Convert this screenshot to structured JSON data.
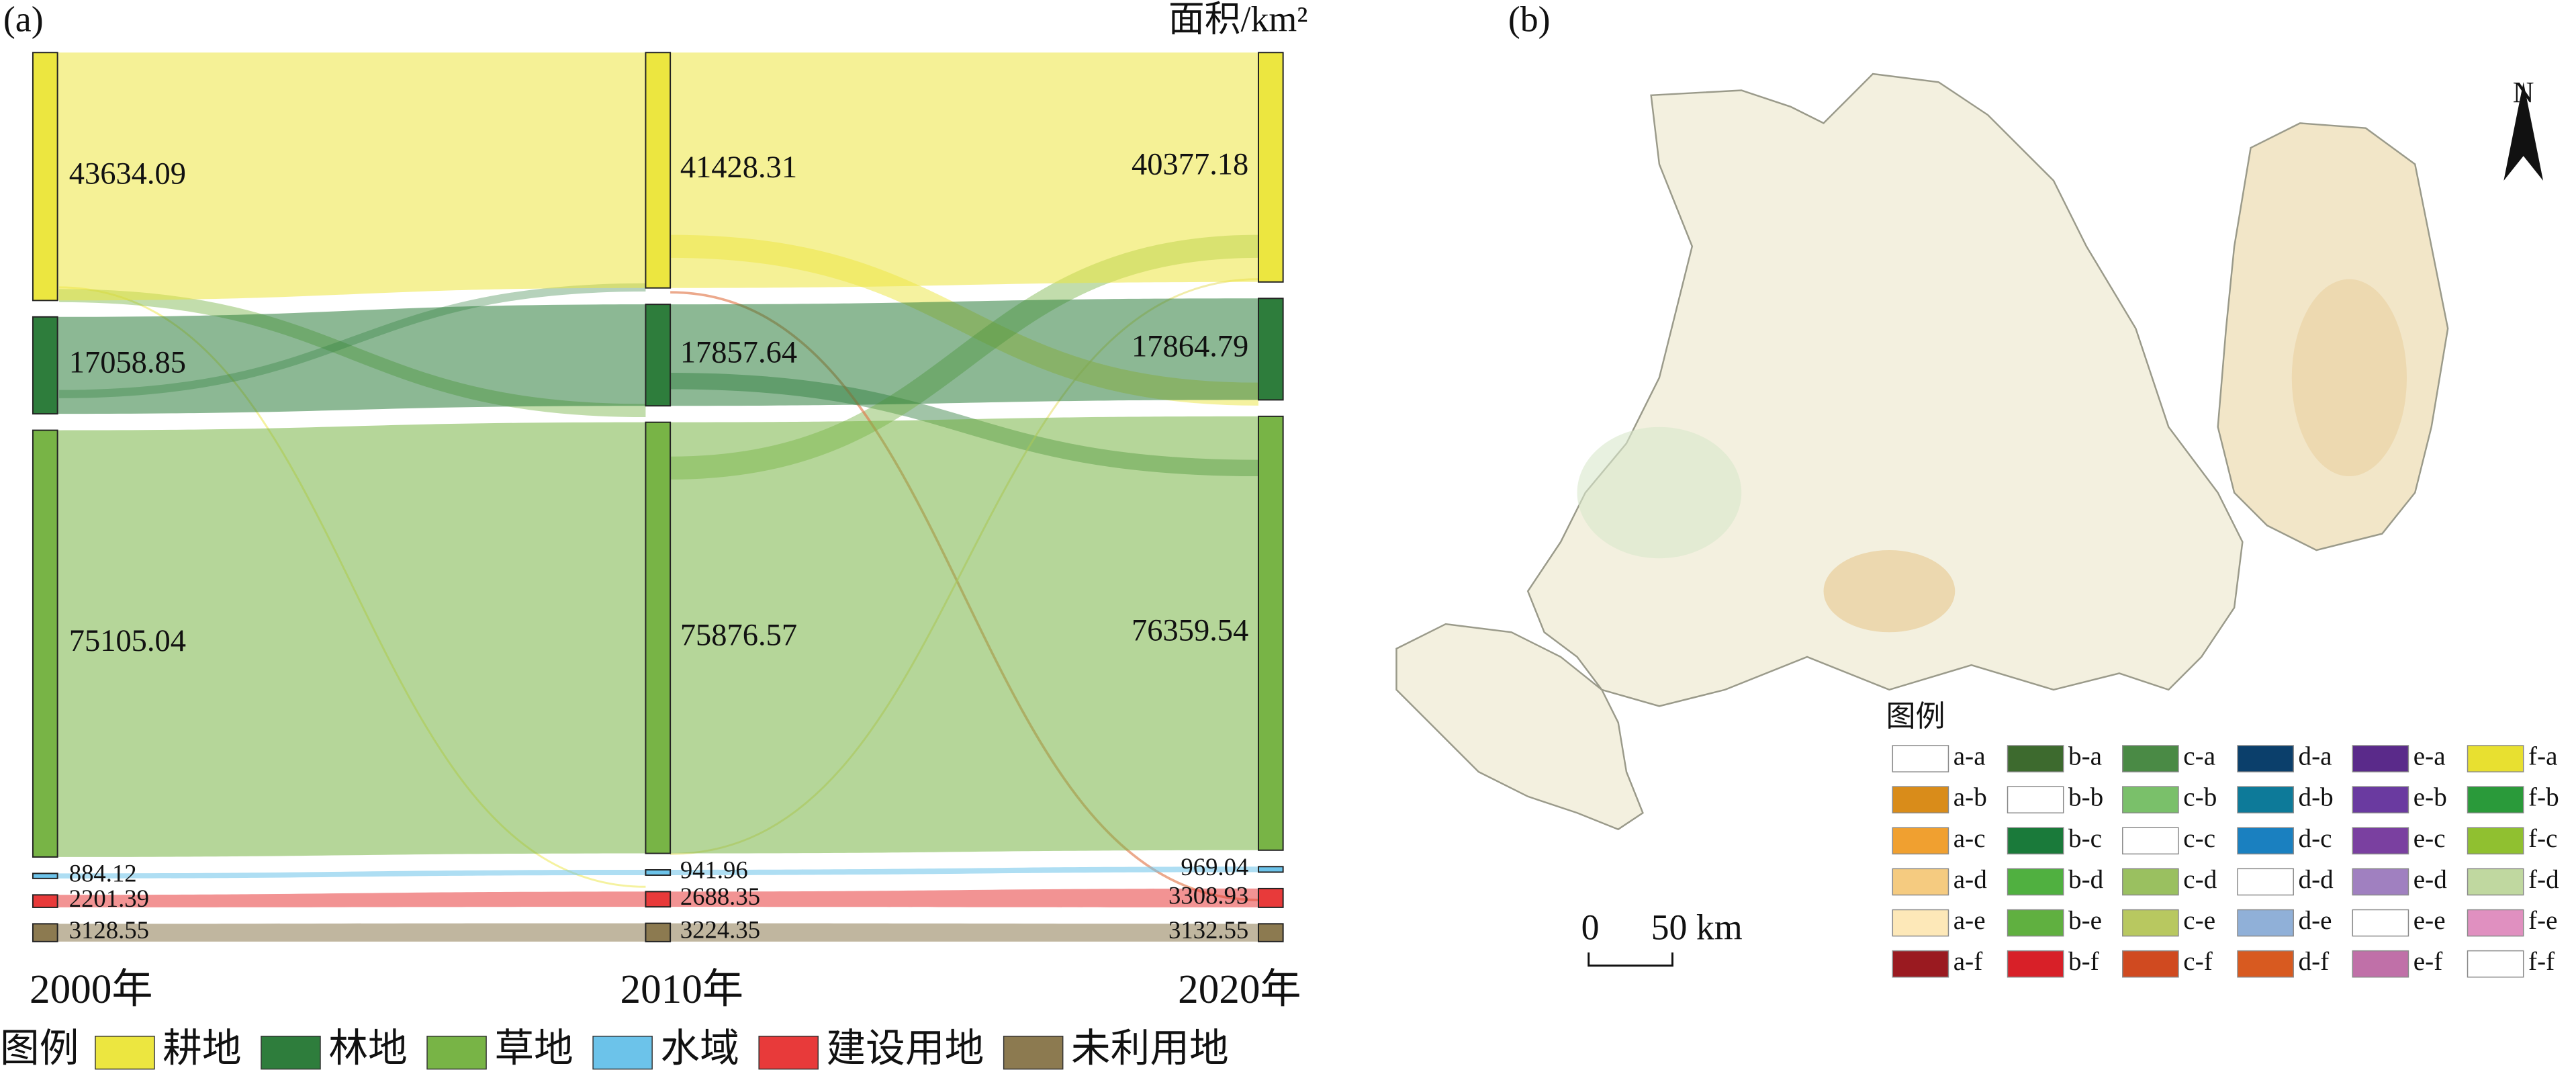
{
  "chart_data": {
    "type": "sankey",
    "panel_label": "(a)",
    "unit_label": "面积/km²",
    "columns": [
      "2000年",
      "2010年",
      "2020年"
    ],
    "legend_title": "图例",
    "series": [
      {
        "name": "耕地",
        "color": "#ece640",
        "values": [
          43634.09,
          41428.31,
          40377.18
        ]
      },
      {
        "name": "林地",
        "color": "#2e7d3c",
        "values": [
          17058.85,
          17857.64,
          17864.79
        ]
      },
      {
        "name": "草地",
        "color": "#78b446",
        "values": [
          75105.04,
          75876.57,
          76359.54
        ]
      },
      {
        "name": "水域",
        "color": "#6cc3ea",
        "values": [
          884.12,
          941.96,
          969.04
        ]
      },
      {
        "name": "建设用地",
        "color": "#e83a3a",
        "values": [
          2201.39,
          2688.35,
          3308.93
        ]
      },
      {
        "name": "未利用地",
        "color": "#8c7a50",
        "values": [
          3128.55,
          3224.35,
          3132.55
        ]
      }
    ]
  },
  "map": {
    "panel_label": "(b)",
    "north": "N",
    "scale_labels": [
      "0",
      "50 km"
    ],
    "legend_title": "图例",
    "legend": [
      {
        "label": "a-a",
        "color": "#ffffff"
      },
      {
        "label": "b-a",
        "color": "#3d6a2e"
      },
      {
        "label": "c-a",
        "color": "#4a8a45"
      },
      {
        "label": "d-a",
        "color": "#0b3f6b"
      },
      {
        "label": "e-a",
        "color": "#5a2a8a"
      },
      {
        "label": "f-a",
        "color": "#e8e030"
      },
      {
        "label": "a-b",
        "color": "#d98c1a"
      },
      {
        "label": "b-b",
        "color": "#ffffff"
      },
      {
        "label": "c-b",
        "color": "#7ac06a"
      },
      {
        "label": "d-b",
        "color": "#0d7a99"
      },
      {
        "label": "e-b",
        "color": "#6a3aa0"
      },
      {
        "label": "f-b",
        "color": "#2a9a3a"
      },
      {
        "label": "a-c",
        "color": "#f0a030"
      },
      {
        "label": "b-c",
        "color": "#1a7a3a"
      },
      {
        "label": "c-c",
        "color": "#ffffff"
      },
      {
        "label": "d-c",
        "color": "#1a80c0"
      },
      {
        "label": "e-c",
        "color": "#7a40a0"
      },
      {
        "label": "f-c",
        "color": "#90c030"
      },
      {
        "label": "a-d",
        "color": "#f5cb80"
      },
      {
        "label": "b-d",
        "color": "#50b040"
      },
      {
        "label": "c-d",
        "color": "#9ac060"
      },
      {
        "label": "d-d",
        "color": "#ffffff"
      },
      {
        "label": "e-d",
        "color": "#a080c0"
      },
      {
        "label": "f-d",
        "color": "#c0d8a0"
      },
      {
        "label": "a-e",
        "color": "#fde8b8"
      },
      {
        "label": "b-e",
        "color": "#60b040"
      },
      {
        "label": "c-e",
        "color": "#b8c860"
      },
      {
        "label": "d-e",
        "color": "#90b0d8"
      },
      {
        "label": "e-e",
        "color": "#ffffff"
      },
      {
        "label": "f-e",
        "color": "#e090c0"
      },
      {
        "label": "a-f",
        "color": "#9a1a20"
      },
      {
        "label": "b-f",
        "color": "#d82028"
      },
      {
        "label": "c-f",
        "color": "#d04a20"
      },
      {
        "label": "d-f",
        "color": "#d85a20"
      },
      {
        "label": "e-f",
        "color": "#c070a8"
      },
      {
        "label": "f-f",
        "color": "#ffffff"
      }
    ]
  }
}
